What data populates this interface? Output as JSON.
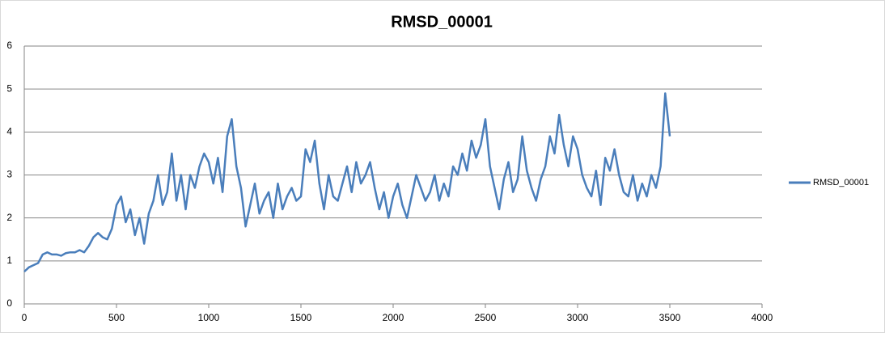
{
  "chart_data": {
    "type": "line",
    "title": "RMSD_00001",
    "x": [
      0,
      25,
      50,
      75,
      100,
      125,
      150,
      175,
      200,
      225,
      250,
      275,
      300,
      325,
      350,
      375,
      400,
      425,
      450,
      475,
      500,
      525,
      550,
      575,
      600,
      625,
      650,
      675,
      700,
      725,
      750,
      775,
      800,
      825,
      850,
      875,
      900,
      925,
      950,
      975,
      1000,
      1025,
      1050,
      1075,
      1100,
      1125,
      1150,
      1175,
      1200,
      1225,
      1250,
      1275,
      1300,
      1325,
      1350,
      1375,
      1400,
      1425,
      1450,
      1475,
      1500,
      1525,
      1550,
      1575,
      1600,
      1625,
      1650,
      1675,
      1700,
      1725,
      1750,
      1775,
      1800,
      1825,
      1850,
      1875,
      1900,
      1925,
      1950,
      1975,
      2000,
      2025,
      2050,
      2075,
      2100,
      2125,
      2150,
      2175,
      2200,
      2225,
      2250,
      2275,
      2300,
      2325,
      2350,
      2375,
      2400,
      2425,
      2450,
      2475,
      2500,
      2525,
      2550,
      2575,
      2600,
      2625,
      2650,
      2675,
      2700,
      2725,
      2750,
      2775,
      2800,
      2825,
      2850,
      2875,
      2900,
      2925,
      2950,
      2975,
      3000,
      3025,
      3050,
      3075,
      3100,
      3125,
      3150,
      3175,
      3200,
      3225,
      3250,
      3275,
      3300,
      3325,
      3350,
      3375,
      3400,
      3425,
      3450,
      3475,
      3500
    ],
    "series": [
      {
        "name": "RMSD_00001",
        "color": "#4a7ebb",
        "values": [
          0.75,
          0.85,
          0.9,
          0.95,
          1.15,
          1.2,
          1.15,
          1.15,
          1.12,
          1.18,
          1.2,
          1.2,
          1.25,
          1.2,
          1.35,
          1.55,
          1.65,
          1.55,
          1.5,
          1.75,
          2.3,
          2.5,
          1.9,
          2.2,
          1.6,
          2.0,
          1.4,
          2.1,
          2.4,
          3.0,
          2.3,
          2.6,
          3.5,
          2.4,
          3.0,
          2.2,
          3.0,
          2.7,
          3.2,
          3.5,
          3.3,
          2.8,
          3.4,
          2.6,
          3.9,
          4.3,
          3.2,
          2.7,
          1.8,
          2.3,
          2.8,
          2.1,
          2.4,
          2.6,
          2.0,
          2.8,
          2.2,
          2.5,
          2.7,
          2.4,
          2.5,
          3.6,
          3.3,
          3.8,
          2.8,
          2.2,
          3.0,
          2.5,
          2.4,
          2.8,
          3.2,
          2.6,
          3.3,
          2.8,
          3.0,
          3.3,
          2.7,
          2.2,
          2.6,
          2.0,
          2.5,
          2.8,
          2.3,
          2.0,
          2.5,
          3.0,
          2.7,
          2.4,
          2.6,
          3.0,
          2.4,
          2.8,
          2.5,
          3.2,
          3.0,
          3.5,
          3.1,
          3.8,
          3.4,
          3.7,
          4.3,
          3.2,
          2.7,
          2.2,
          2.9,
          3.3,
          2.6,
          2.9,
          3.9,
          3.1,
          2.7,
          2.4,
          2.9,
          3.2,
          3.9,
          3.5,
          4.4,
          3.7,
          3.2,
          3.9,
          3.6,
          3.0,
          2.7,
          2.5,
          3.1,
          2.3,
          3.4,
          3.1,
          3.6,
          3.0,
          2.6,
          2.5,
          3.0,
          2.4,
          2.8,
          2.5,
          3.0,
          2.7,
          3.2,
          4.9,
          3.9
        ]
      }
    ],
    "xlim": [
      0,
      4000
    ],
    "xticks": [
      0,
      500,
      1000,
      1500,
      2000,
      2500,
      3000,
      3500,
      4000
    ],
    "ylim": [
      0,
      6
    ],
    "yticks": [
      0,
      1,
      2,
      3,
      4,
      5,
      6
    ],
    "grid": true,
    "legend": "right"
  }
}
